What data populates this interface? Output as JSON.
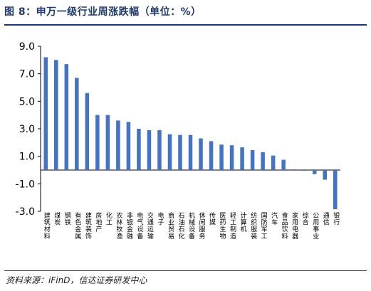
{
  "header": {
    "title": "图 8：申万一级行业周涨跌幅（单位：%）"
  },
  "source": {
    "text": "资料来源：iFinD，信达证券研发中心"
  },
  "colors": {
    "bar": "#4472C4",
    "axis": "#000000",
    "title": "#1f3a6f"
  },
  "chart_data": {
    "type": "bar",
    "title": "",
    "xlabel": "",
    "ylabel": "",
    "ylim": [
      -3.0,
      9.0
    ],
    "yticks": [
      -3.0,
      -1.0,
      1.0,
      3.0,
      5.0,
      7.0,
      9.0
    ],
    "ytick_labels": [
      "-3.0",
      "-1.0",
      "1.0",
      "3.0",
      "5.0",
      "7.0",
      "9.0"
    ],
    "grid": false,
    "categories": [
      "建筑材料",
      "煤炭",
      "钢铁",
      "有色金属",
      "建筑装饰",
      "房地产",
      "化工",
      "农林牧渔",
      "非银金融",
      "电气设备",
      "交通运输",
      "电子",
      "商业贸易",
      "石油石化",
      "机械设备",
      "休闲服务",
      "传媒",
      "医药生物",
      "轻工制造",
      "计算机",
      "纺织服装",
      "国防军工",
      "汽车",
      "食品饮料",
      "家用电器",
      "综合",
      "公用事业",
      "通信",
      "银行"
    ],
    "values": [
      8.2,
      8.0,
      7.7,
      6.7,
      5.6,
      4.0,
      4.0,
      3.6,
      3.5,
      3.0,
      2.9,
      2.9,
      2.6,
      2.55,
      2.55,
      2.3,
      2.1,
      1.85,
      1.8,
      1.65,
      1.45,
      1.3,
      1.05,
      0.75,
      0.05,
      -0.05,
      -0.3,
      -0.7,
      -2.85
    ]
  }
}
